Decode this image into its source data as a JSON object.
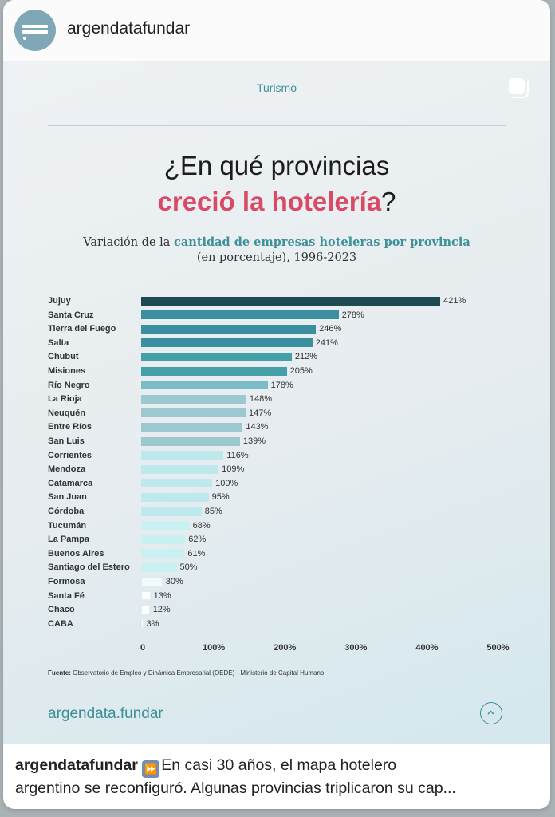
{
  "header": {
    "username": "argendatafundar",
    "avatar_icon": "argendata-logo-icon"
  },
  "post": {
    "section_label": "Turismo",
    "multi_icon": "carousel-icon",
    "title_line1": "¿En qué provincias",
    "title_line2_highlight": "creció la hotelería",
    "title_line2_end": "?",
    "subtitle_pre": "Variación de la ",
    "subtitle_highlight": "cantidad de empresas hoteleras por provincia",
    "subtitle_line2": "(en porcentaje), 1996-2023",
    "source_label": "Fuente:",
    "source_text": " Observatorio de Empleo y Dinámica Empresarial (OEDE) - Ministerio de Capital Humano.",
    "brand": "argendata.fundar",
    "up_icon": "chevron-up-circle-icon"
  },
  "caption": {
    "user": "argendatafundar",
    "icon": "fast-forward-icon",
    "icon_glyph": "⏩",
    "line1": "En casi 30 años, el mapa hotelero",
    "line2": "argentino se reconfiguró. Algunas provincias triplicaron su cap..."
  },
  "chart_data": {
    "type": "bar",
    "orientation": "horizontal",
    "title": "Variación de la cantidad de empresas hoteleras por provincia",
    "subtitle": "(en porcentaje), 1996-2023",
    "xlabel": "",
    "ylabel": "",
    "xlim": [
      0,
      500
    ],
    "x_ticks": [
      "0",
      "100%",
      "200%",
      "300%",
      "400%",
      "500%"
    ],
    "grid": false,
    "categories": [
      "Jujuy",
      "Santa Cruz",
      "Tierra del Fuego",
      "Salta",
      "Chubut",
      "Misiones",
      "Río Negro",
      "La Rioja",
      "Neuquén",
      "Entre Ríos",
      "San Luis",
      "Corrientes",
      "Mendoza",
      "Catamarca",
      "San Juan",
      "Córdoba",
      "Tucumán",
      "La Pampa",
      "Buenos Aires",
      "Santiago del Estero",
      "Formosa",
      "Santa Fé",
      "Chaco",
      "CABA"
    ],
    "values": [
      421,
      278,
      246,
      241,
      212,
      205,
      178,
      148,
      147,
      143,
      139,
      116,
      109,
      100,
      95,
      85,
      68,
      62,
      61,
      50,
      30,
      13,
      12,
      3
    ],
    "labels": [
      "421%",
      "278%",
      "246%",
      "241%",
      "212%",
      "205%",
      "178%",
      "148%",
      "147%",
      "143%",
      "139%",
      "116%",
      "109%",
      "100%",
      "95%",
      "85%",
      "68%",
      "62%",
      "61%",
      "50%",
      "30%",
      "13%",
      "12%",
      "3%"
    ],
    "colors": [
      "#1f4a53",
      "#3b8f9e",
      "#3b8f9e",
      "#3b8f9e",
      "#44a0a6",
      "#44a0a6",
      "#7bbcc6",
      "#9bc9cf",
      "#9bc9cf",
      "#9bc9cf",
      "#9bc9cf",
      "#bde8ec",
      "#bde8ec",
      "#bde8ec",
      "#bde8ec",
      "#bde8ec",
      "#c9f1f2",
      "#c9f1f2",
      "#c9f1f2",
      "#c9f1f2",
      "#f0fbfc",
      "#ffffff",
      "#ffffff",
      "#ffffff"
    ]
  }
}
